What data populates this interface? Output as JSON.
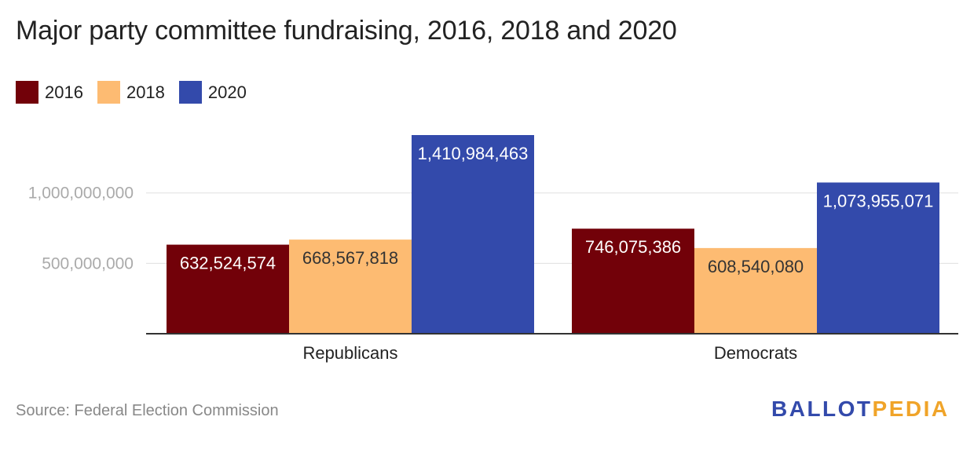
{
  "title": "Major party committee fundraising, 2016, 2018 and 2020",
  "legend": [
    {
      "label": "2016",
      "color": "#720109"
    },
    {
      "label": "2018",
      "color": "#fdbb72"
    },
    {
      "label": "2020",
      "color": "#334aab"
    }
  ],
  "source": "Source: Federal Election Commission",
  "logo": {
    "part1": "BALLOT",
    "part2": "PEDIA",
    "color1": "#334aab",
    "color2": "#f0a429"
  },
  "chart_data": {
    "type": "bar",
    "title": "Major party committee fundraising, 2016, 2018 and 2020",
    "categories": [
      "Republicans",
      "Democrats"
    ],
    "series": [
      {
        "name": "2016",
        "color": "#720109",
        "values": [
          632524574,
          746075386
        ],
        "labels": [
          "632,524,574",
          "746,075,386"
        ]
      },
      {
        "name": "2018",
        "color": "#fdbb72",
        "values": [
          668567818,
          608540080
        ],
        "labels": [
          "668,567,818",
          "608,540,080"
        ]
      },
      {
        "name": "2020",
        "color": "#334aab",
        "values": [
          1410984463,
          1073955071
        ],
        "labels": [
          "1,410,984,463",
          "1,073,955,071"
        ]
      }
    ],
    "yticks": [
      500000000,
      1000000000
    ],
    "ytick_labels": [
      "500,000,000",
      "1,000,000,000"
    ],
    "ylim": [
      0,
      1410984463
    ],
    "xlabel": "",
    "ylabel": "",
    "grid": true,
    "legend_position": "top-left"
  }
}
